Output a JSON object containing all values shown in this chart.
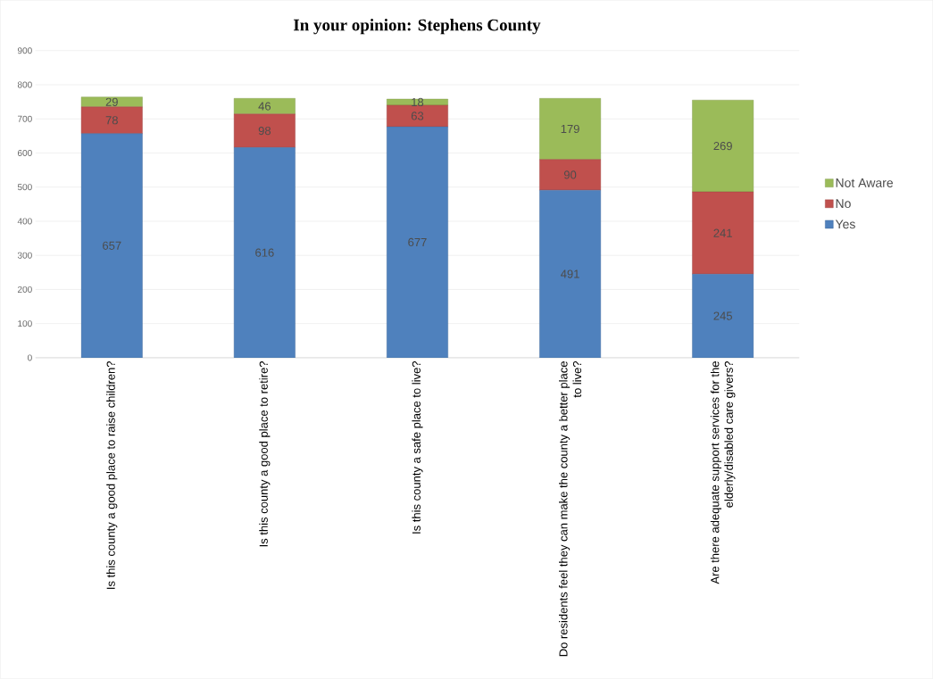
{
  "chart_data": {
    "type": "bar",
    "title": "In your opinion:  Stephens County",
    "stacked": true,
    "data_labels": true,
    "grid": "y",
    "legend": "right",
    "categories": [
      "Is this county a good place to raise children?",
      "Is this county a good place to retire?",
      "Is this county a safe place to live?",
      "Do residents feel they can make the county a better place to live?",
      "Are there adequate support services for the elderly/disabled care givers?"
    ],
    "ylim": [
      0,
      900
    ],
    "yticks": [
      0,
      100,
      200,
      300,
      400,
      500,
      600,
      700,
      800,
      900
    ],
    "series": [
      {
        "name": "Yes",
        "color": "#4f81bd",
        "values": [
          657,
          616,
          677,
          491,
          245
        ]
      },
      {
        "name": "No",
        "color": "#c0504d",
        "values": [
          78,
          98,
          63,
          90,
          241
        ]
      },
      {
        "name": "Not Aware",
        "color": "#9bbb59",
        "values": [
          29,
          46,
          18,
          179,
          269
        ]
      }
    ]
  }
}
